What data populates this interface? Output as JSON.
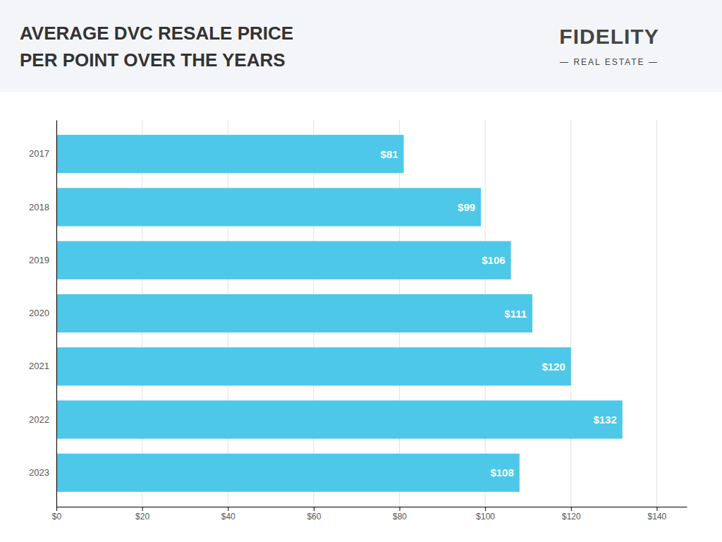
{
  "chart_data": {
    "type": "bar",
    "orientation": "horizontal",
    "title": "AVERAGE DVC RESALE PRICE",
    "subtitle": "PER POINT OVER THE YEARS",
    "annotations": [
      "FIDELITY",
      "— REAL ESTATE —"
    ],
    "categories": [
      "2017",
      "2018",
      "2019",
      "2020",
      "2021",
      "2022",
      "2023"
    ],
    "values": [
      81,
      99,
      106,
      111,
      120,
      132,
      108
    ],
    "value_labels": [
      "$81",
      "$99",
      "$106",
      "$111",
      "$120",
      "$132",
      "$108"
    ],
    "data_labels": true,
    "color": "#4DC8E8",
    "xlim": [
      0,
      147
    ],
    "xticks": [
      {
        "value": 0,
        "label": "$0"
      },
      {
        "value": 20,
        "label": "$20"
      },
      {
        "value": 40,
        "label": "$40"
      },
      {
        "value": 60,
        "label": "$60"
      },
      {
        "value": 80,
        "label": "$80"
      },
      {
        "value": 100,
        "label": "$100"
      },
      {
        "value": 120,
        "label": "$120"
      },
      {
        "value": 140,
        "label": "$140"
      }
    ],
    "grid": true
  }
}
